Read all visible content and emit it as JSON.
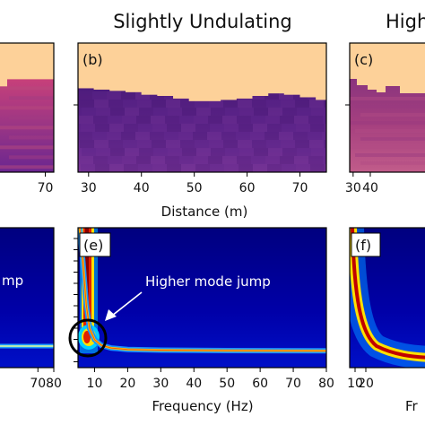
{
  "chart_data": [
    {
      "panel": "a",
      "type": "heatmap",
      "title": "",
      "x_ticks": [
        70
      ],
      "x_range": [
        20,
        79
      ],
      "background": "#fdd199",
      "layer_colors": [
        "#b0457a",
        "#8c2f83",
        "#6a2b8c",
        "#4a1a78"
      ],
      "interface_depths": [
        0.35,
        0.6,
        0.75,
        0.95
      ]
    },
    {
      "panel": "b",
      "type": "heatmap",
      "title": "Slightly Undulating",
      "label": "(b)",
      "xlabel": "Distance (m)",
      "x_ticks": [
        30,
        40,
        50,
        60,
        70
      ],
      "x_range": [
        28,
        75
      ],
      "background": "#fdd199",
      "top_interface": [
        [
          28,
          0.35
        ],
        [
          31,
          0.36
        ],
        [
          34,
          0.37
        ],
        [
          37,
          0.38
        ],
        [
          40,
          0.4
        ],
        [
          43,
          0.41
        ],
        [
          46,
          0.43
        ],
        [
          49,
          0.45
        ],
        [
          52,
          0.45
        ],
        [
          55,
          0.44
        ],
        [
          58,
          0.43
        ],
        [
          61,
          0.41
        ],
        [
          64,
          0.39
        ],
        [
          67,
          0.4
        ],
        [
          70,
          0.42
        ],
        [
          73,
          0.44
        ],
        [
          75,
          0.44
        ]
      ]
    },
    {
      "panel": "c",
      "type": "heatmap",
      "title": "High",
      "label": "(c)",
      "x_ticks": [
        30,
        40
      ],
      "x_range": [
        28,
        75
      ],
      "background": "#fdd199"
    },
    {
      "panel": "d",
      "type": "heatmap",
      "x_ticks": [
        70,
        80
      ],
      "x_range": [
        45,
        80
      ],
      "annotation": "mp",
      "background": "#00007f"
    },
    {
      "panel": "e",
      "type": "heatmap",
      "label": "(e)",
      "xlabel": "Frequency (Hz)",
      "x_ticks": [
        10,
        20,
        30,
        40,
        50,
        60,
        70,
        80
      ],
      "x_range": [
        5,
        80
      ],
      "annotation": "Higher mode jump",
      "background": "#00007f",
      "fundamental_mode": [
        [
          5.5,
          0.0
        ],
        [
          6.5,
          0.25
        ],
        [
          7.5,
          0.55
        ],
        [
          8.5,
          0.72
        ],
        [
          10,
          0.8
        ],
        [
          12,
          0.84
        ],
        [
          15,
          0.86
        ],
        [
          20,
          0.87
        ],
        [
          30,
          0.875
        ],
        [
          50,
          0.878
        ],
        [
          80,
          0.88
        ]
      ]
    },
    {
      "panel": "f",
      "type": "heatmap",
      "label": "(f)",
      "x_ticks": [
        10,
        20
      ],
      "x_range": [
        5,
        80
      ],
      "xlabel": "Fr",
      "background": "#00007f"
    }
  ]
}
